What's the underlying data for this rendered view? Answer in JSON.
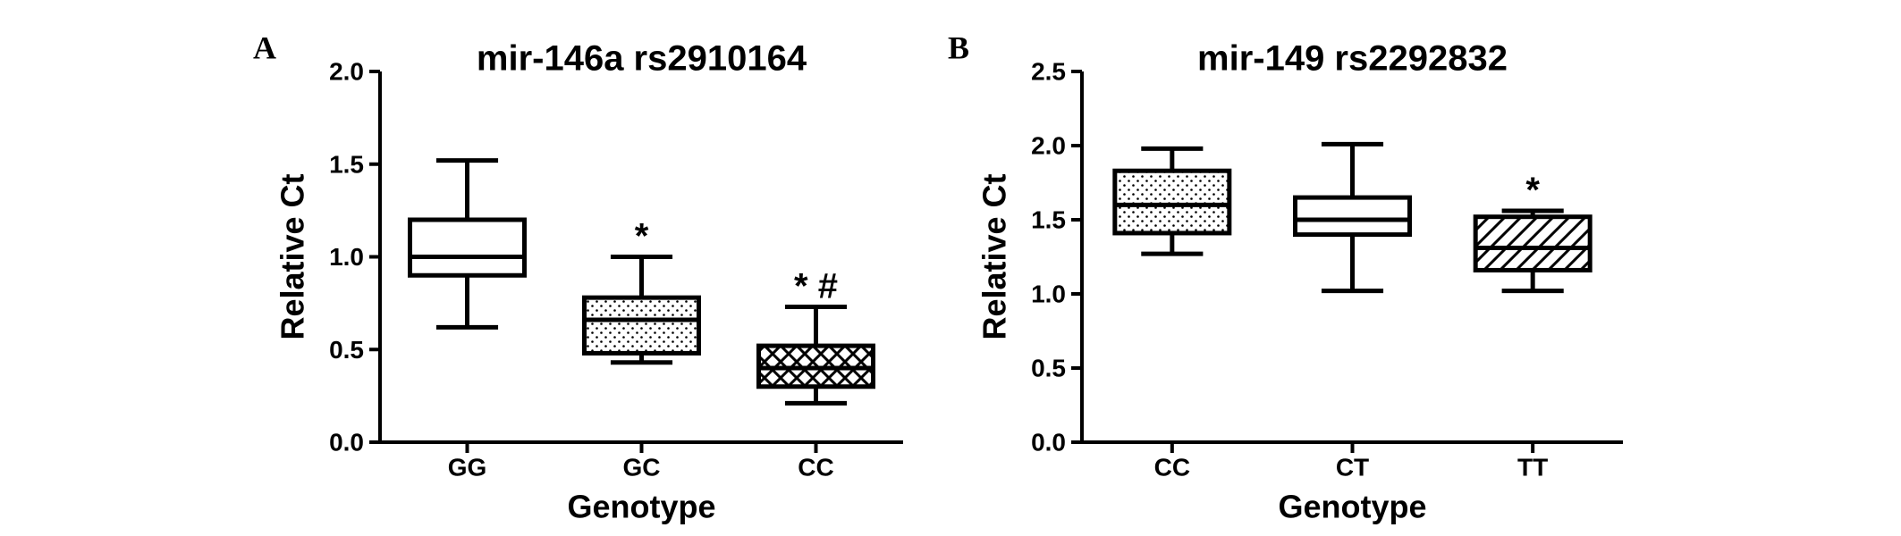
{
  "chart_data": [
    {
      "type": "box",
      "panel_label": "A",
      "title": "mir-146a rs2910164",
      "xlabel": "Genotype",
      "ylabel": "Relative Ct",
      "ylim": [
        0,
        2.0
      ],
      "yticks": [
        "0.0",
        "0.5",
        "1.0",
        "1.5",
        "2.0"
      ],
      "categories": [
        "GG",
        "GC",
        "CC"
      ],
      "boxes": [
        {
          "category": "GG",
          "min": 0.62,
          "q1": 0.9,
          "median": 1.0,
          "q3": 1.2,
          "max": 1.52,
          "pattern": "none",
          "annotation": ""
        },
        {
          "category": "GC",
          "min": 0.43,
          "q1": 0.48,
          "median": 0.66,
          "q3": 0.78,
          "max": 1.0,
          "pattern": "dots",
          "annotation": "*"
        },
        {
          "category": "CC",
          "min": 0.21,
          "q1": 0.3,
          "median": 0.4,
          "q3": 0.52,
          "max": 0.73,
          "pattern": "crosshatch",
          "annotation": "* #"
        }
      ]
    },
    {
      "type": "box",
      "panel_label": "B",
      "title": "mir-149 rs2292832",
      "xlabel": "Genotype",
      "ylabel": "Relative Ct",
      "ylim": [
        0,
        2.5
      ],
      "yticks": [
        "0.0",
        "0.5",
        "1.0",
        "1.5",
        "2.0",
        "2.5"
      ],
      "categories": [
        "CC",
        "CT",
        "TT"
      ],
      "boxes": [
        {
          "category": "CC",
          "min": 1.27,
          "q1": 1.41,
          "median": 1.6,
          "q3": 1.83,
          "max": 1.98,
          "pattern": "dots",
          "annotation": ""
        },
        {
          "category": "CT",
          "min": 1.02,
          "q1": 1.4,
          "median": 1.5,
          "q3": 1.65,
          "max": 2.01,
          "pattern": "none",
          "annotation": ""
        },
        {
          "category": "TT",
          "min": 1.02,
          "q1": 1.16,
          "median": 1.31,
          "q3": 1.52,
          "max": 1.56,
          "pattern": "diagonal",
          "annotation": "*"
        }
      ]
    }
  ]
}
